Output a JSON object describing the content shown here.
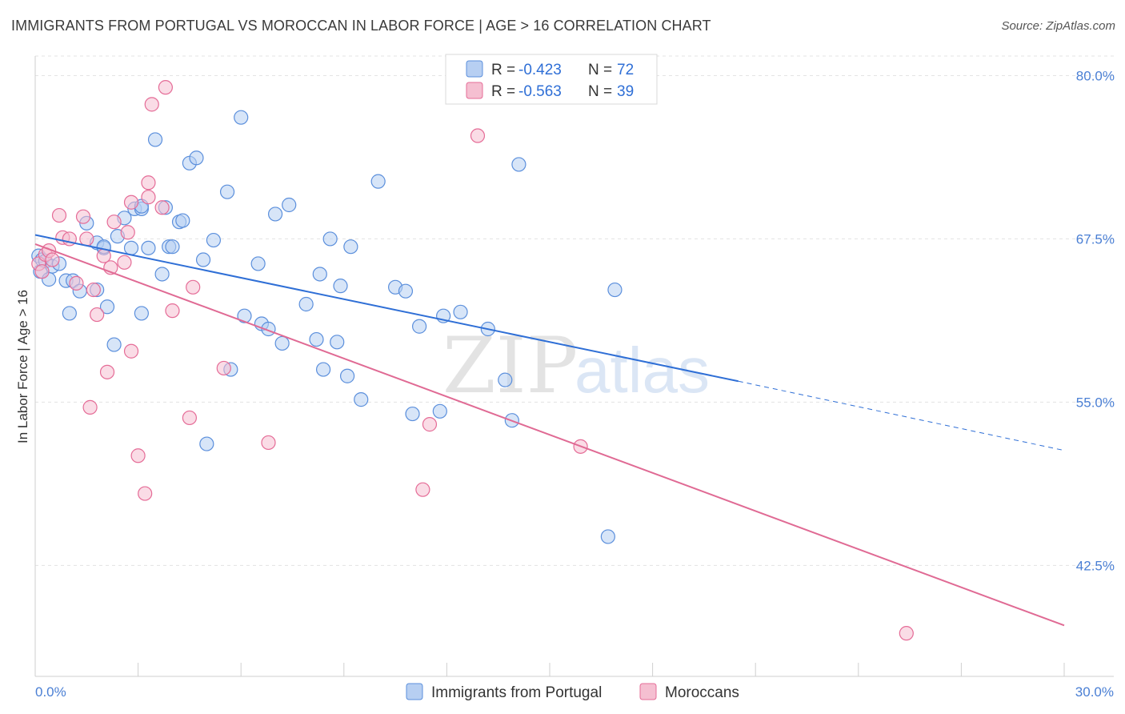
{
  "title": "IMMIGRANTS FROM PORTUGAL VS MOROCCAN IN LABOR FORCE | AGE > 16 CORRELATION CHART",
  "source": "Source: ZipAtlas.com",
  "watermark": {
    "zip": "ZIP",
    "atlas": "atlas"
  },
  "colors": {
    "blue": "#5b8fdc",
    "blue_fill": "#b7cff2",
    "pink": "#e56c97",
    "pink_fill": "#f5bfd1",
    "trend_blue": "#2f6fd6",
    "trend_pink": "#e06a94",
    "grid": "#e3e3e3"
  },
  "legend": {
    "rows": [
      {
        "r_label": "R = ",
        "r_value": "-0.423",
        "n_label": "N = ",
        "n_value": "72"
      },
      {
        "r_label": "R = ",
        "r_value": "-0.563",
        "n_label": "N = ",
        "n_value": "39"
      }
    ]
  },
  "bottom_legend": [
    "Immigrants from Portugal",
    "Moroccans"
  ],
  "chart_data": {
    "type": "scatter",
    "title": "IMMIGRANTS FROM PORTUGAL VS MOROCCAN IN LABOR FORCE | AGE > 16 CORRELATION CHART",
    "xlabel": "",
    "ylabel": "In Labor Force | Age > 16",
    "xlim": [
      0,
      30
    ],
    "ylim": [
      34,
      81.5
    ],
    "x_tick_labels": [
      "0.0%",
      "30.0%"
    ],
    "y_ticks": [
      42.5,
      55.0,
      67.5,
      80.0
    ],
    "y_tick_labels": [
      "42.5%",
      "55.0%",
      "67.5%",
      "80.0%"
    ],
    "grid": true,
    "series": [
      {
        "name": "Immigrants from Portugal",
        "r": -0.423,
        "n": 72,
        "trend": {
          "x0": 0,
          "y0": 67.8,
          "x1": 20.5,
          "y1": 56.6,
          "dash_x1": 30,
          "dash_y1": 51.3
        },
        "points": [
          [
            0.1,
            66.2
          ],
          [
            0.15,
            65.0
          ],
          [
            0.2,
            65.9
          ],
          [
            0.3,
            65.8
          ],
          [
            0.4,
            64.4
          ],
          [
            0.5,
            65.4
          ],
          [
            0.7,
            65.6
          ],
          [
            0.9,
            64.3
          ],
          [
            1.1,
            64.3
          ],
          [
            1.3,
            63.5
          ],
          [
            1.0,
            61.8
          ],
          [
            1.5,
            68.7
          ],
          [
            1.8,
            67.2
          ],
          [
            2.0,
            66.8
          ],
          [
            2.1,
            62.3
          ],
          [
            2.3,
            59.4
          ],
          [
            2.4,
            67.7
          ],
          [
            2.6,
            69.1
          ],
          [
            2.8,
            66.8
          ],
          [
            2.9,
            69.8
          ],
          [
            3.1,
            69.8
          ],
          [
            3.1,
            61.8
          ],
          [
            3.3,
            66.8
          ],
          [
            3.5,
            75.1
          ],
          [
            3.7,
            64.8
          ],
          [
            3.8,
            69.9
          ],
          [
            3.9,
            66.9
          ],
          [
            4.0,
            66.9
          ],
          [
            4.2,
            68.8
          ],
          [
            4.3,
            68.9
          ],
          [
            4.5,
            73.3
          ],
          [
            4.7,
            73.7
          ],
          [
            4.9,
            65.9
          ],
          [
            5.0,
            51.8
          ],
          [
            5.2,
            67.4
          ],
          [
            5.6,
            71.1
          ],
          [
            5.7,
            57.5
          ],
          [
            6.0,
            76.8
          ],
          [
            6.1,
            61.6
          ],
          [
            6.5,
            65.6
          ],
          [
            6.6,
            61.0
          ],
          [
            6.8,
            60.6
          ],
          [
            7.0,
            69.4
          ],
          [
            7.2,
            59.5
          ],
          [
            7.4,
            70.1
          ],
          [
            7.9,
            62.5
          ],
          [
            8.2,
            59.8
          ],
          [
            8.3,
            64.8
          ],
          [
            8.4,
            57.5
          ],
          [
            8.6,
            67.5
          ],
          [
            8.8,
            59.6
          ],
          [
            8.9,
            63.9
          ],
          [
            9.1,
            57.0
          ],
          [
            9.2,
            66.9
          ],
          [
            9.5,
            55.2
          ],
          [
            10.0,
            71.9
          ],
          [
            10.5,
            63.8
          ],
          [
            10.8,
            63.5
          ],
          [
            11.0,
            54.1
          ],
          [
            11.2,
            60.8
          ],
          [
            11.8,
            54.3
          ],
          [
            11.9,
            61.6
          ],
          [
            12.4,
            61.9
          ],
          [
            13.2,
            60.6
          ],
          [
            13.7,
            56.7
          ],
          [
            13.9,
            53.6
          ],
          [
            14.1,
            73.2
          ],
          [
            16.7,
            44.7
          ],
          [
            16.9,
            63.6
          ],
          [
            3.1,
            70.0
          ],
          [
            1.8,
            63.6
          ],
          [
            2.0,
            66.9
          ]
        ]
      },
      {
        "name": "Moroccans",
        "r": -0.563,
        "n": 39,
        "trend": {
          "x0": 0,
          "y0": 67.1,
          "x1": 30,
          "y1": 37.9
        },
        "points": [
          [
            0.1,
            65.6
          ],
          [
            0.3,
            66.3
          ],
          [
            0.4,
            66.6
          ],
          [
            0.5,
            65.9
          ],
          [
            0.7,
            69.3
          ],
          [
            0.8,
            67.6
          ],
          [
            1.0,
            67.5
          ],
          [
            1.2,
            64.1
          ],
          [
            1.4,
            69.2
          ],
          [
            1.5,
            67.5
          ],
          [
            1.6,
            54.6
          ],
          [
            1.7,
            63.6
          ],
          [
            1.8,
            61.7
          ],
          [
            2.0,
            66.2
          ],
          [
            2.1,
            57.3
          ],
          [
            2.2,
            65.3
          ],
          [
            2.3,
            68.8
          ],
          [
            2.6,
            65.7
          ],
          [
            2.7,
            68.0
          ],
          [
            2.8,
            58.9
          ],
          [
            2.8,
            70.3
          ],
          [
            3.0,
            50.9
          ],
          [
            3.2,
            48.0
          ],
          [
            3.3,
            70.7
          ],
          [
            3.3,
            71.8
          ],
          [
            3.4,
            77.8
          ],
          [
            3.7,
            69.9
          ],
          [
            3.8,
            79.1
          ],
          [
            4.0,
            62.0
          ],
          [
            4.5,
            53.8
          ],
          [
            4.6,
            63.8
          ],
          [
            5.5,
            57.6
          ],
          [
            6.8,
            51.9
          ],
          [
            11.3,
            48.3
          ],
          [
            11.5,
            53.3
          ],
          [
            12.9,
            75.4
          ],
          [
            15.9,
            51.6
          ],
          [
            25.4,
            37.3
          ],
          [
            0.2,
            65.0
          ]
        ]
      }
    ]
  }
}
